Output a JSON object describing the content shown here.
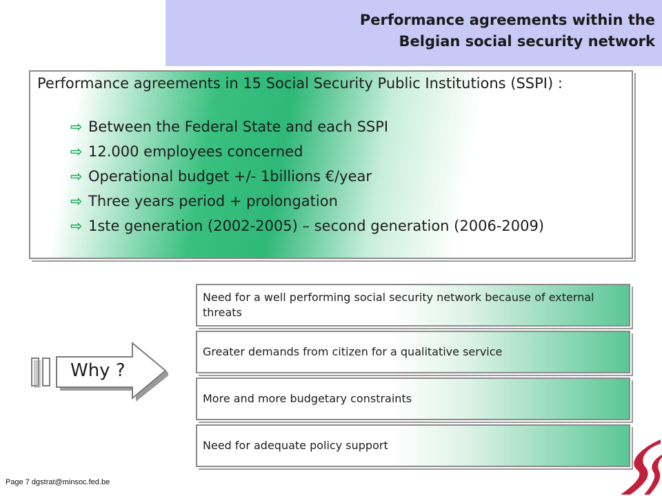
{
  "header": {
    "title_line1": "Performance agreements within the",
    "title_line2": "Belgian social security network"
  },
  "main": {
    "lead": "Performance agreements in 15 Social Security Public Institutions (SSPI) :",
    "bullet_icon": "arrow-right-icon",
    "items": [
      "Between the Federal State and each SSPI",
      "12.000 employees concerned",
      "Operational budget +/- 1billions €/year",
      "Three years period + prolongation",
      "1ste generation (2002-2005) – second generation (2006-2009)"
    ]
  },
  "why": {
    "label": "Why ?"
  },
  "reasons": [
    "Need for a well performing social security network because of external threats",
    "Greater demands from citizen for a qualitative service",
    "More and more budgetary constraints",
    "Need for adequate policy support"
  ],
  "footer": {
    "text": "Page 7 dgstrat@minsoc.fed.be"
  },
  "colors": {
    "header_bg": "#c9c9f7",
    "accent_green": "#2fb878",
    "logo_red": "#c0203a"
  }
}
